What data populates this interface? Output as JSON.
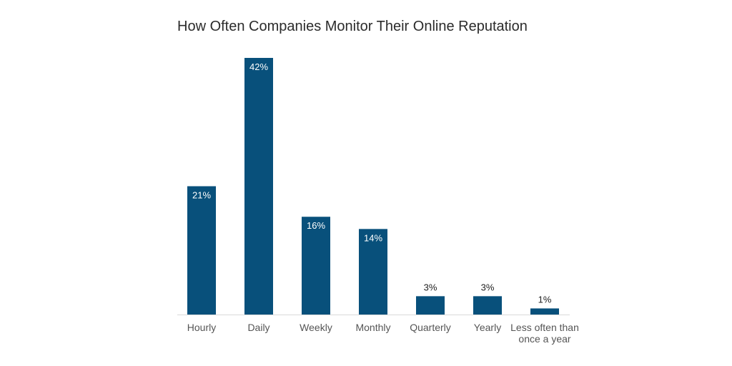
{
  "chart_data": {
    "type": "bar",
    "title": "How Often Companies Monitor Their Online Reputation",
    "categories": [
      "Hourly",
      "Daily",
      "Weekly",
      "Monthly",
      "Quarterly",
      "Yearly",
      "Less often than once a year"
    ],
    "category_lines": [
      [
        "Hourly"
      ],
      [
        "Daily"
      ],
      [
        "Weekly"
      ],
      [
        "Monthly"
      ],
      [
        "Quarterly"
      ],
      [
        "Yearly"
      ],
      [
        "Less often than",
        "once a year"
      ]
    ],
    "values": [
      21,
      42,
      16,
      14,
      3,
      3,
      1
    ],
    "data_labels": [
      "21%",
      "42%",
      "16%",
      "14%",
      "3%",
      "3%",
      "1%"
    ],
    "xlabel": "",
    "ylabel": "",
    "ylim": [
      0,
      42
    ],
    "grid": false,
    "legend": "none",
    "colors": {
      "bar": "#08507b",
      "inside_label": "#ffffff",
      "outside_label": "#222222",
      "axis": "#d9d9d9",
      "tick_text": "#555555"
    }
  }
}
